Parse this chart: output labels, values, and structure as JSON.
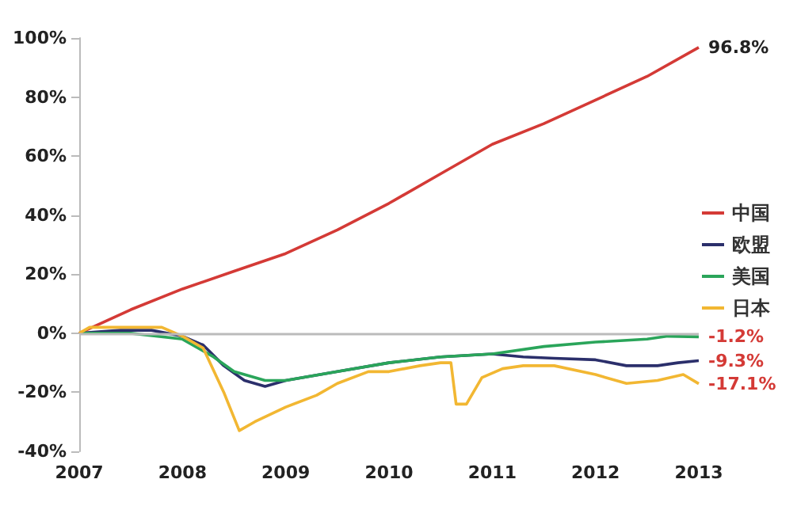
{
  "chart_data": {
    "type": "line",
    "xlim": [
      2007,
      2013
    ],
    "xticks": [
      2007,
      2008,
      2009,
      2010,
      2011,
      2012,
      2013
    ],
    "ylim": [
      -40,
      100
    ],
    "yticks": [
      {
        "value": -40,
        "label": "-40%"
      },
      {
        "value": -20,
        "label": "-20%"
      },
      {
        "value": 0,
        "label": "0%"
      },
      {
        "value": 20,
        "label": "20%"
      },
      {
        "value": 40,
        "label": "40%"
      },
      {
        "value": 60,
        "label": "60%"
      },
      {
        "value": 80,
        "label": "80%"
      },
      {
        "value": 100,
        "label": "100%"
      }
    ],
    "grid": false,
    "legend": "right",
    "marker": "none",
    "line_style": "solid",
    "ref_lines": [
      {
        "axis": "y",
        "value": 0,
        "color": "#bbbbbb"
      }
    ],
    "series": [
      {
        "name": "中国",
        "color": "#d43a36",
        "x": [
          2007,
          2007.5,
          2008,
          2008.5,
          2009,
          2009.5,
          2010,
          2010.5,
          2011,
          2011.5,
          2012,
          2012.5,
          2013
        ],
        "values": [
          0,
          8,
          15,
          21,
          27,
          35,
          44,
          54,
          64,
          71,
          79,
          87,
          96.8
        ],
        "value_labels": [
          null,
          null,
          null,
          null,
          null,
          null,
          null,
          null,
          null,
          null,
          null,
          null,
          "96.8%"
        ]
      },
      {
        "name": "欧盟",
        "color": "#2b2f6b",
        "x": [
          2007,
          2007.4,
          2007.7,
          2008,
          2008.2,
          2008.4,
          2008.6,
          2008.8,
          2009,
          2009.5,
          2010,
          2010.5,
          2011,
          2011.3,
          2011.6,
          2012,
          2012.3,
          2012.6,
          2012.8,
          2013
        ],
        "values": [
          0,
          1,
          1,
          -1,
          -4,
          -11,
          -16,
          -18,
          -16,
          -13,
          -10,
          -8,
          -7,
          -8,
          -8.5,
          -9,
          -11,
          -11,
          -10,
          -9.3
        ],
        "value_labels": [
          null,
          null,
          null,
          null,
          null,
          null,
          null,
          null,
          null,
          null,
          null,
          null,
          null,
          null,
          null,
          null,
          null,
          null,
          null,
          "-9.3%"
        ]
      },
      {
        "name": "美国",
        "color": "#2aa55a",
        "x": [
          2007,
          2007.5,
          2008,
          2008.2,
          2008.3,
          2008.5,
          2008.8,
          2009,
          2009.5,
          2010,
          2010.5,
          2011,
          2011.5,
          2012,
          2012.5,
          2012.7,
          2013
        ],
        "values": [
          0,
          0,
          -2,
          -6,
          -8,
          -13,
          -16,
          -16,
          -13,
          -10,
          -8,
          -7,
          -4.5,
          -3,
          -2,
          -1,
          -1.2
        ],
        "value_labels": [
          null,
          null,
          null,
          null,
          null,
          null,
          null,
          null,
          null,
          null,
          null,
          null,
          null,
          null,
          null,
          null,
          "-1.2%"
        ]
      },
      {
        "name": "日本",
        "color": "#f2b732",
        "x": [
          2007,
          2007.1,
          2007.5,
          2007.8,
          2008,
          2008.2,
          2008.4,
          2008.55,
          2008.7,
          2009,
          2009.3,
          2009.5,
          2009.8,
          2010,
          2010.3,
          2010.5,
          2010.6,
          2010.65,
          2010.75,
          2010.9,
          2011.1,
          2011.3,
          2011.6,
          2012,
          2012.3,
          2012.6,
          2012.85,
          2013
        ],
        "values": [
          0,
          2,
          2,
          2,
          -1,
          -5,
          -20,
          -33,
          -30,
          -25,
          -21,
          -17,
          -13,
          -13,
          -11,
          -10,
          -10,
          -24,
          -24,
          -15,
          -12,
          -11,
          -11,
          -14,
          -17,
          -16,
          -14,
          -17.1
        ],
        "value_labels": [
          null,
          null,
          null,
          null,
          null,
          null,
          null,
          null,
          null,
          null,
          null,
          null,
          null,
          null,
          null,
          null,
          null,
          null,
          null,
          null,
          null,
          null,
          null,
          null,
          null,
          null,
          null,
          "-17.1%"
        ]
      }
    ]
  }
}
